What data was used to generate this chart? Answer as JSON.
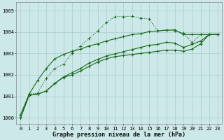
{
  "bg_color": "#cce8e8",
  "grid_color": "#aacccc",
  "line_color": "#1a6b1a",
  "xlabel": "Graphe pression niveau de la mer (hPa)",
  "ylim": [
    999.7,
    1005.4
  ],
  "xlim": [
    -0.5,
    23.5
  ],
  "yticks": [
    1000,
    1001,
    1002,
    1003,
    1004,
    1005
  ],
  "xticks": [
    0,
    1,
    2,
    3,
    4,
    5,
    6,
    7,
    8,
    9,
    10,
    11,
    12,
    13,
    14,
    15,
    16,
    17,
    18,
    19,
    20,
    21,
    22,
    23
  ],
  "series1": [
    1000.0,
    1001.1,
    1001.15,
    1001.85,
    1002.3,
    1002.5,
    1003.0,
    1003.35,
    1003.7,
    1004.05,
    1004.45,
    1004.72,
    1004.72,
    1004.73,
    1004.65,
    1004.6,
    1004.05,
    1004.1,
    1004.05,
    1003.95,
    1003.5,
    1003.88,
    1003.88,
    1003.88
  ],
  "series2": [
    1000.15,
    1001.1,
    1001.75,
    1002.3,
    1002.75,
    1002.95,
    1003.1,
    1003.2,
    1003.35,
    1003.45,
    1003.58,
    1003.68,
    1003.78,
    1003.88,
    1003.92,
    1004.02,
    1004.05,
    1004.08,
    1004.1,
    1003.88,
    1003.88,
    1003.88,
    1003.88,
    1003.88
  ],
  "series3": [
    1000.0,
    1001.05,
    1001.1,
    1001.25,
    1001.6,
    1001.9,
    1002.1,
    1002.3,
    1002.55,
    1002.72,
    1002.88,
    1002.98,
    1003.08,
    1003.18,
    1003.28,
    1003.38,
    1003.42,
    1003.52,
    1003.48,
    1003.28,
    1003.42,
    1003.58,
    1003.88,
    1003.88
  ],
  "series4": [
    1000.0,
    1001.05,
    1001.1,
    1001.25,
    1001.6,
    1001.88,
    1002.0,
    1002.18,
    1002.4,
    1002.6,
    1002.75,
    1002.85,
    1002.9,
    1002.95,
    1003.0,
    1003.05,
    1003.1,
    1003.15,
    1003.15,
    1003.1,
    1003.2,
    1003.45,
    1003.88,
    1003.88
  ],
  "xlabel_fontsize": 6,
  "tick_fontsize": 5,
  "lw": 0.8,
  "marker_size": 2.5
}
